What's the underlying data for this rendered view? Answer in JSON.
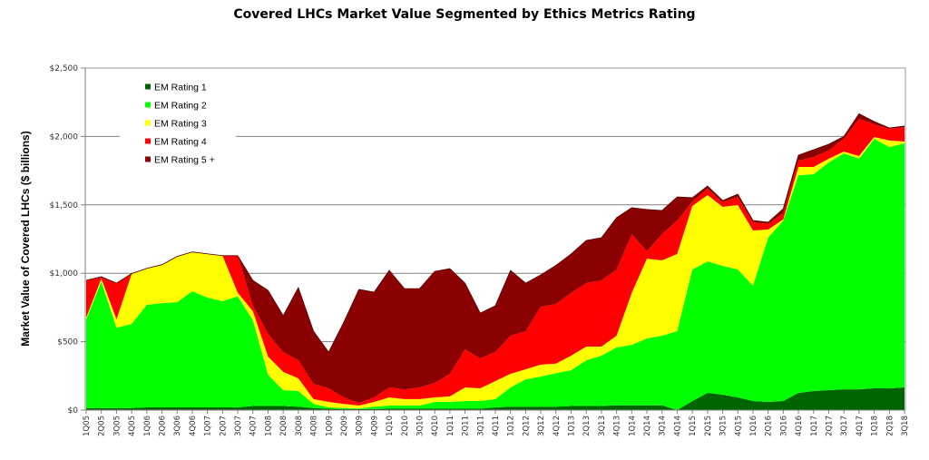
{
  "chart_data": {
    "type": "area",
    "stacked": true,
    "title": "Covered LHCs Market Value Segmented by Ethics Metrics Rating",
    "xlabel": "",
    "ylabel": "Market Value of Covered LHCs ($ billions)",
    "ylim": [
      0,
      2500
    ],
    "yticks": [
      0,
      500,
      1000,
      1500,
      2000,
      2500
    ],
    "ytick_labels": [
      "$0",
      "$500",
      "$1,000",
      "$1,500",
      "$2,000",
      "$2,500"
    ],
    "grid": true,
    "legend_position": "top-left",
    "categories": [
      "1Q05",
      "2Q05",
      "3Q05",
      "4Q05",
      "1Q06",
      "2Q06",
      "3Q06",
      "4Q06",
      "1Q07",
      "2Q07",
      "3Q07",
      "4Q07",
      "1Q08",
      "2Q08",
      "3Q08",
      "4Q08",
      "1Q09",
      "2Q09",
      "3Q09",
      "4Q09",
      "1Q10",
      "2Q10",
      "3Q10",
      "4Q10",
      "1Q11",
      "2Q11",
      "3Q11",
      "4Q11",
      "1Q12",
      "2Q12",
      "3Q12",
      "4Q12",
      "1Q13",
      "2Q13",
      "3Q13",
      "4Q13",
      "1Q14",
      "2Q14",
      "3Q14",
      "4Q14",
      "1Q15",
      "2Q15",
      "3Q15",
      "4Q15",
      "1Q16",
      "2Q16",
      "3Q16",
      "4Q16",
      "1Q17",
      "2Q17",
      "3Q17",
      "4Q17",
      "1Q18",
      "2Q18",
      "3Q18"
    ],
    "series": [
      {
        "name": "EM Rating 1",
        "color": "#006400",
        "values": [
          15,
          15,
          15,
          15,
          20,
          20,
          20,
          20,
          20,
          20,
          20,
          30,
          30,
          30,
          25,
          15,
          10,
          8,
          8,
          8,
          10,
          10,
          10,
          10,
          10,
          10,
          10,
          20,
          25,
          25,
          25,
          25,
          30,
          30,
          30,
          35,
          35,
          35,
          35,
          0,
          66,
          126,
          113,
          93,
          66,
          60,
          66,
          126,
          139,
          146,
          152,
          152,
          159,
          159,
          166
        ]
      },
      {
        "name": "EM Rating 2",
        "color": "#00FF00",
        "values": [
          648,
          925,
          588,
          615,
          749,
          762,
          769,
          849,
          802,
          776,
          811,
          627,
          229,
          116,
          114,
          31,
          10,
          7,
          4,
          17,
          23,
          23,
          23,
          50,
          50,
          56,
          56,
          60,
          141,
          200,
          220,
          245,
          262,
          335,
          368,
          423,
          442,
          489,
          509,
          577,
          962,
          961,
          941,
          935,
          843,
          1200,
          1320,
          1591,
          1585,
          1664,
          1725,
          1685,
          1824,
          1764,
          1784
        ]
      },
      {
        "name": "EM Rating 3",
        "color": "#FFFF00",
        "values": [
          13,
          20,
          60,
          365,
          265,
          279,
          332,
          285,
          318,
          331,
          27,
          66,
          132,
          133,
          93,
          34,
          40,
          30,
          21,
          35,
          60,
          47,
          47,
          33,
          40,
          100,
          93,
          132,
          99,
          73,
          87,
          70,
          106,
          99,
          66,
          86,
          379,
          583,
          550,
          564,
          464,
          485,
          431,
          471,
          404,
          60,
          7,
          60,
          53,
          27,
          13,
          20,
          13,
          47,
          13
        ]
      },
      {
        "name": "EM Rating 4",
        "color": "#FF0000",
        "values": [
          272,
          8,
          265,
          0,
          0,
          0,
          0,
          0,
          0,
          0,
          271,
          42,
          166,
          145,
          133,
          112,
          99,
          48,
          20,
          33,
          73,
          72,
          86,
          106,
          165,
          278,
          219,
          212,
          279,
          279,
          424,
          435,
          458,
          464,
          484,
          484,
          430,
          54,
          192,
          245,
          33,
          46,
          34,
          59,
          60,
          40,
          46,
          47,
          73,
          60,
          93,
          272,
          93,
          86,
          106
        ]
      },
      {
        "name": "EM Rating 5 +",
        "color": "#8B0000",
        "values": [
          0,
          7,
          0,
          3,
          2,
          2,
          2,
          2,
          2,
          2,
          0,
          183,
          318,
          266,
          530,
          385,
          265,
          550,
          829,
          769,
          855,
          736,
          722,
          815,
          769,
          484,
          331,
          339,
          477,
          351,
          232,
          283,
          285,
          312,
          312,
          378,
          193,
          305,
          173,
          172,
          27,
          20,
          13,
          20,
          13,
          13,
          33,
          39,
          53,
          46,
          17,
          37,
          20,
          6,
          7
        ]
      }
    ]
  }
}
